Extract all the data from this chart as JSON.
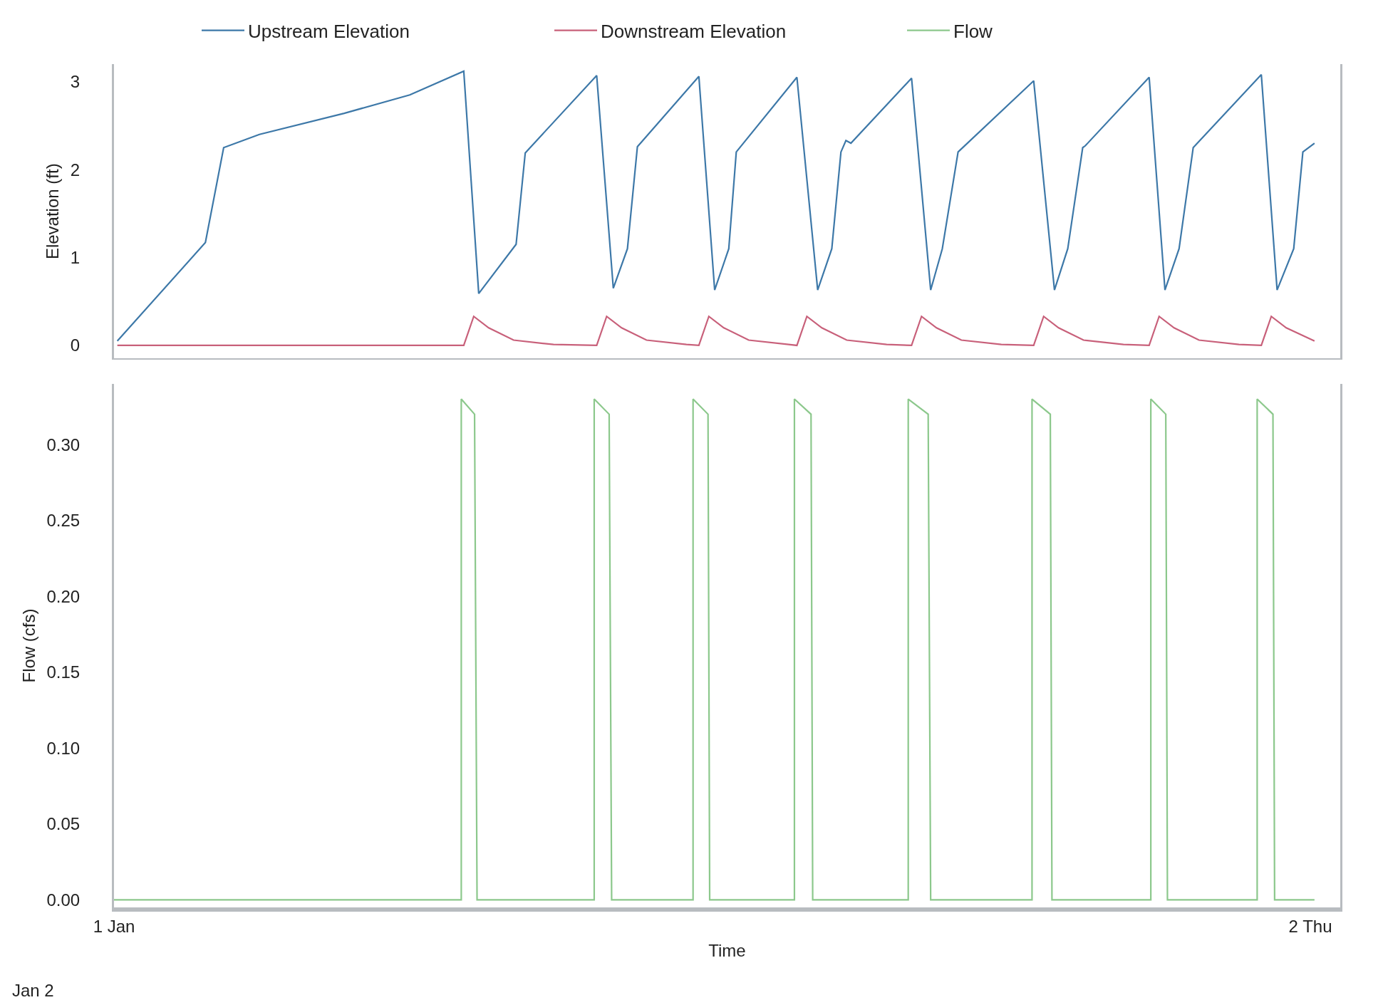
{
  "chart_data": [
    {
      "type": "line",
      "ylabel": "Elevation (ft)",
      "ylim": [
        -0.15,
        3.2
      ],
      "yticks": [
        0,
        1,
        2,
        3
      ],
      "xlim": [
        "--01-01T00:00",
        "--01-02T00:36"
      ],
      "xticks": [
        {
          "value": "--01-01",
          "label": "1 Jan"
        },
        {
          "value": "--01-02",
          "label": "2 Thu"
        }
      ],
      "tick_labels": "y",
      "legend": "top",
      "marker": "none",
      "series": [
        {
          "name": "Upstream Elevation",
          "color": "#3d78a8",
          "x": [
            "--01-01T00:04",
            "--01-01T01:50",
            "--01-01T02:12",
            "--01-01T02:55",
            "--01-01T04:37",
            "--01-01T05:56",
            "--01-01T07:01",
            "--01-01T07:19",
            "--01-01T08:04",
            "--01-01T08:15",
            "--01-01T09:41",
            "--01-01T10:01",
            "--01-01T10:18",
            "--01-01T10:30",
            "--01-01T11:44",
            "--01-01T12:03",
            "--01-01T12:20",
            "--01-01T12:29",
            "--01-01T13:42",
            "--01-01T14:07",
            "--01-01T14:24",
            "--01-01T14:35",
            "--01-01T14:41",
            "--01-01T14:47",
            "--01-01T16:00",
            "--01-01T16:23",
            "--01-01T16:37",
            "--01-01T16:56",
            "--01-01T18:27",
            "--01-01T18:52",
            "--01-01T19:08",
            "--01-01T19:26",
            "--01-01T19:29",
            "--01-01T20:46",
            "--01-01T21:05",
            "--01-01T21:22",
            "--01-01T21:39",
            "--01-01T23:01",
            "--01-01T23:20",
            "--01-01T23:40",
            "--01-01T23:51",
            "--01-02T00:05"
          ],
          "values": [
            0.05,
            1.17,
            2.25,
            2.4,
            2.64,
            2.85,
            3.12,
            0.59,
            1.15,
            2.19,
            3.07,
            0.65,
            1.1,
            2.26,
            3.06,
            0.63,
            1.1,
            2.2,
            3.05,
            0.63,
            1.1,
            2.2,
            2.33,
            2.3,
            3.04,
            0.63,
            1.1,
            2.2,
            3.01,
            0.63,
            1.1,
            2.25,
            2.27,
            3.05,
            0.63,
            1.1,
            2.25,
            3.08,
            0.63,
            1.1,
            2.2,
            2.3
          ]
        },
        {
          "name": "Downstream Elevation",
          "color": "#c8607a",
          "x": [
            "--01-01T00:04",
            "--01-01T07:01",
            "--01-01T07:13",
            "--01-01T07:31",
            "--01-01T08:01",
            "--01-01T08:49",
            "--01-01T09:41",
            "--01-01T09:53",
            "--01-01T10:11",
            "--01-01T10:41",
            "--01-01T11:29",
            "--01-01T11:44",
            "--01-01T11:56",
            "--01-01T12:14",
            "--01-01T12:44",
            "--01-01T13:32",
            "--01-01T13:42",
            "--01-01T13:54",
            "--01-01T14:12",
            "--01-01T14:42",
            "--01-01T15:30",
            "--01-01T16:00",
            "--01-01T16:12",
            "--01-01T16:30",
            "--01-01T17:00",
            "--01-01T17:48",
            "--01-01T18:27",
            "--01-01T18:39",
            "--01-01T18:57",
            "--01-01T19:27",
            "--01-01T20:15",
            "--01-01T20:46",
            "--01-01T20:58",
            "--01-01T21:16",
            "--01-01T21:46",
            "--01-01T22:34",
            "--01-01T23:01",
            "--01-01T23:13",
            "--01-01T23:31",
            "--01-02T00:05"
          ],
          "values": [
            0,
            0,
            0.33,
            0.2,
            0.06,
            0.01,
            0,
            0.33,
            0.2,
            0.06,
            0.01,
            0,
            0.33,
            0.2,
            0.06,
            0.01,
            0,
            0.33,
            0.2,
            0.06,
            0.01,
            0,
            0.33,
            0.2,
            0.06,
            0.01,
            0,
            0.33,
            0.2,
            0.06,
            0.01,
            0,
            0.33,
            0.2,
            0.06,
            0.01,
            0,
            0.33,
            0.2,
            0.05
          ]
        }
      ]
    },
    {
      "type": "line",
      "xlabel": "Time",
      "ylabel": "Flow (cfs)",
      "ylim": [
        -0.005,
        0.34
      ],
      "yticks": [
        {
          "value": 0,
          "label": "0.00"
        },
        {
          "value": 0.05,
          "label": "0.05"
        },
        {
          "value": 0.1,
          "label": "0.10"
        },
        {
          "value": 0.15,
          "label": "0.15"
        },
        {
          "value": 0.2,
          "label": "0.20"
        },
        {
          "value": 0.25,
          "label": "0.25"
        },
        {
          "value": 0.3,
          "label": "0.30"
        }
      ],
      "xlim": [
        "--01-01T00:00",
        "--01-02T00:36"
      ],
      "xticks": [
        {
          "value": "--01-01",
          "label": "1 Jan"
        },
        {
          "value": "--01-02",
          "label": "2 Thu"
        }
      ],
      "legend": "top",
      "marker": "none",
      "annotations": [
        "Jan 2"
      ],
      "series": [
        {
          "name": "Flow",
          "color": "#8cc88c",
          "x": [
            "--01-01T00:00",
            "--01-01T06:58",
            "--01-01T06:58",
            "--01-01T07:14",
            "--01-01T07:17",
            "--01-01T09:38",
            "--01-01T09:38",
            "--01-01T09:56",
            "--01-01T09:59",
            "--01-01T11:37",
            "--01-01T11:37",
            "--01-01T11:55",
            "--01-01T11:57",
            "--01-01T13:39",
            "--01-01T13:39",
            "--01-01T13:59",
            "--01-01T14:01",
            "--01-01T15:56",
            "--01-01T15:56",
            "--01-01T16:20",
            "--01-01T16:23",
            "--01-01T18:25",
            "--01-01T18:25",
            "--01-01T18:47",
            "--01-01T18:49",
            "--01-01T20:48",
            "--01-01T20:48",
            "--01-01T21:06",
            "--01-01T21:08",
            "--01-01T22:56",
            "--01-01T22:56",
            "--01-01T23:15",
            "--01-01T23:17",
            "--01-02T00:05"
          ],
          "values": [
            0,
            0,
            0.33,
            0.32,
            0,
            0,
            0.33,
            0.32,
            0,
            0,
            0.33,
            0.32,
            0,
            0,
            0.33,
            0.32,
            0,
            0,
            0.33,
            0.32,
            0,
            0,
            0.33,
            0.32,
            0,
            0,
            0.33,
            0.32,
            0,
            0,
            0.33,
            0.32,
            0,
            0
          ]
        }
      ]
    }
  ]
}
